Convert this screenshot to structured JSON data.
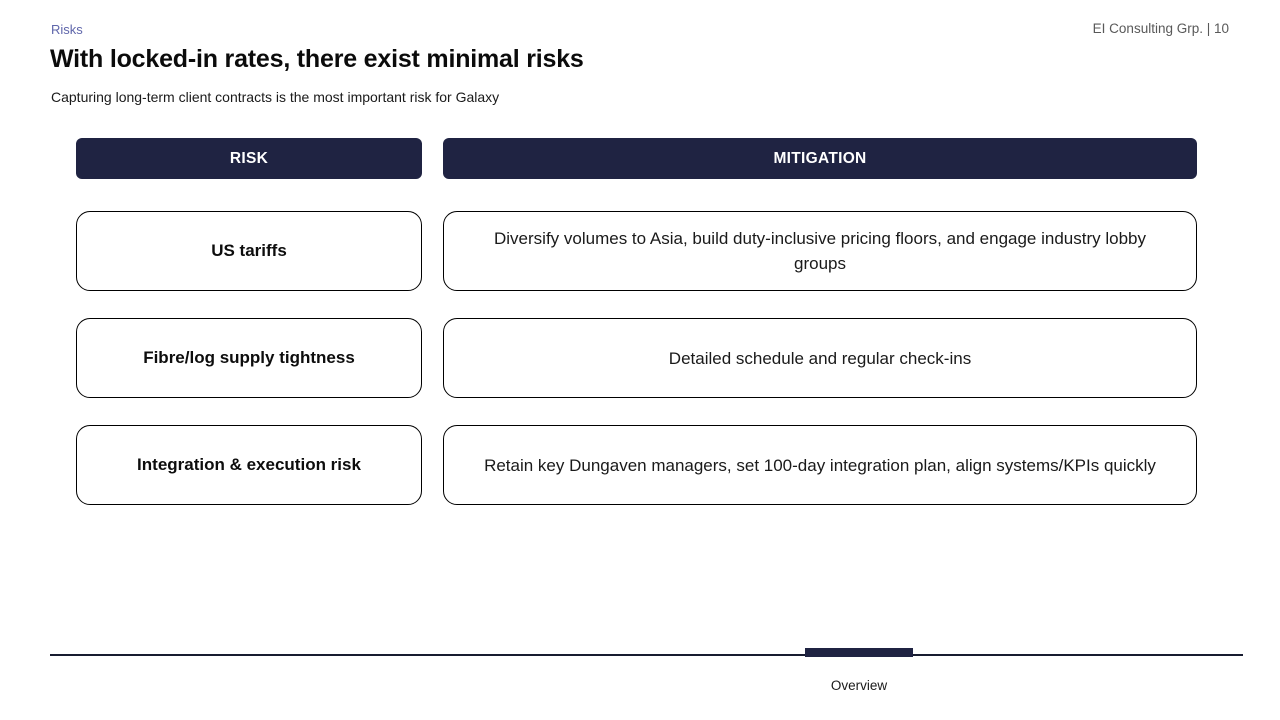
{
  "slide": {
    "eyebrow": "Risks",
    "title": "With locked-in rates, there exist minimal risks",
    "subtitle": "Capturing long-term client contracts is the most important risk for Galaxy",
    "meta": "EI Consulting Grp. | 10",
    "colors": {
      "navy": "#1f2342",
      "eyebrow_blue": "#5f66ab",
      "meta_gray": "#595959",
      "box_border": "#000000",
      "footer_line": "#181c30"
    }
  },
  "table": {
    "headers": [
      {
        "label": "RISK"
      },
      {
        "label": "MITIGATION"
      }
    ],
    "rows": [
      {
        "risk": "US tariffs",
        "mitigation": "Diversify volumes to Asia, build duty-inclusive pricing floors, and engage industry lobby groups"
      },
      {
        "risk": "Fibre/log supply tightness",
        "mitigation": "Detailed schedule and regular check-ins"
      },
      {
        "risk": "Integration & execution risk",
        "mitigation": "Retain key Dungaven managers, set 100-day integration plan, align systems/KPIs quickly"
      }
    ]
  },
  "footer": {
    "section_label": "Overview"
  }
}
